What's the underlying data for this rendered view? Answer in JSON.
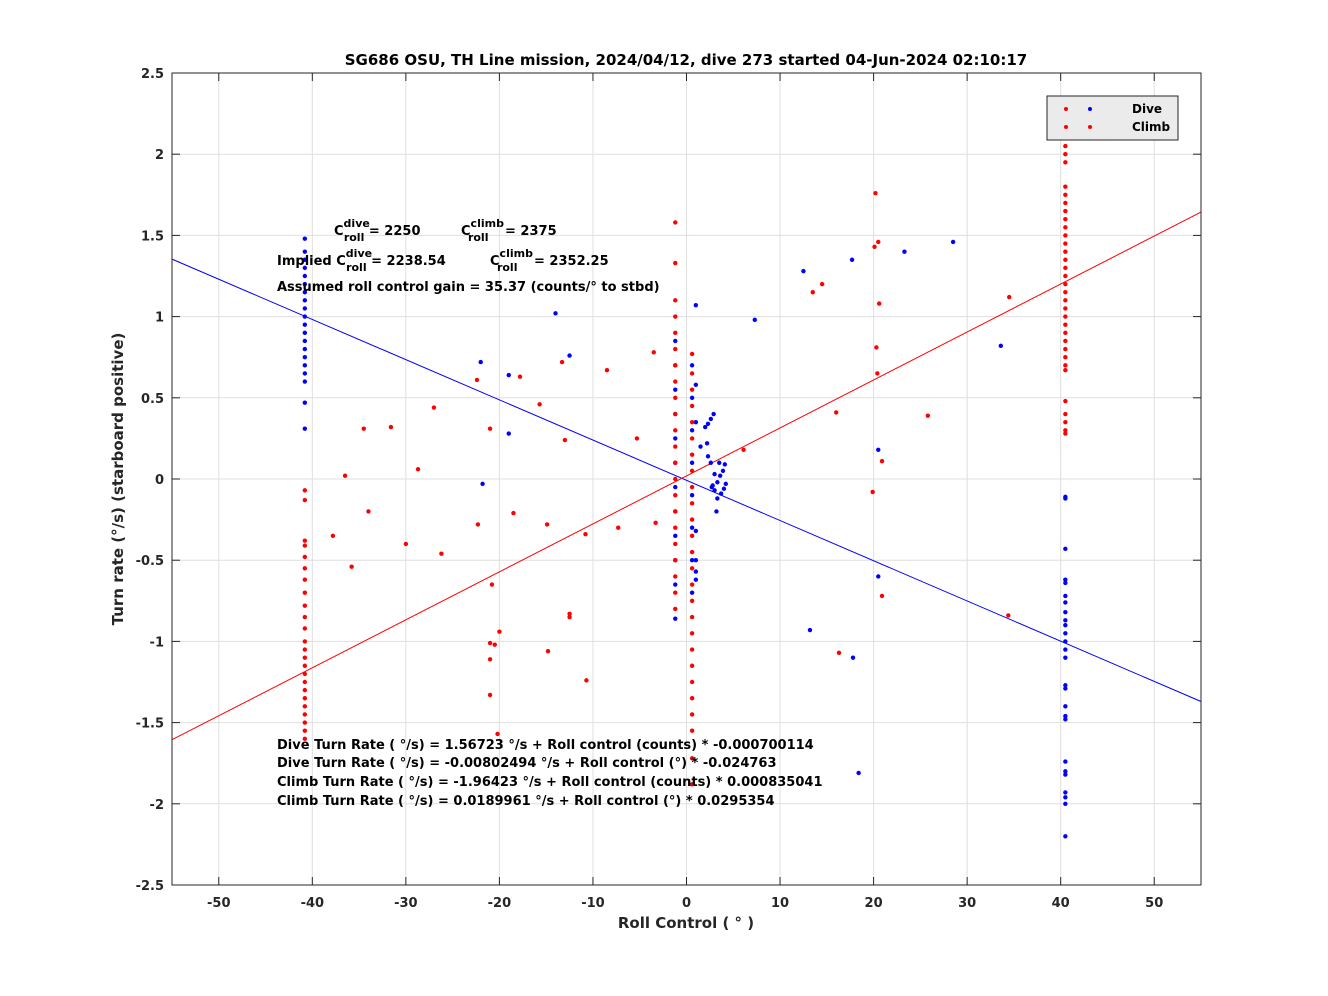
{
  "chart_data": {
    "type": "scatter",
    "title": "SG686 OSU, TH Line mission, 2024/04/12, dive 273 started 04-Jun-2024 02:10:17",
    "xlabel": "Roll Control ( ° )",
    "ylabel": "Turn rate (°/s) (starboard positive)",
    "xlim": [
      -55,
      55
    ],
    "ylim": [
      -2.5,
      2.5
    ],
    "xticks": [
      -50,
      -40,
      -30,
      -20,
      -10,
      0,
      10,
      20,
      30,
      40,
      50
    ],
    "yticks": [
      -2.5,
      -2,
      -1.5,
      -1,
      -0.5,
      0,
      0.5,
      1,
      1.5,
      2,
      2.5
    ],
    "grid": true,
    "legend_position": "top-right",
    "colors": {
      "dive": "#0000ff",
      "climb": "#ff0000"
    },
    "series": [
      {
        "name": "Dive",
        "color": "#0000ff",
        "points": [
          [
            -40.8,
            1.48
          ],
          [
            -40.8,
            1.4
          ],
          [
            -40.8,
            1.35
          ],
          [
            -40.8,
            1.3
          ],
          [
            -40.8,
            1.25
          ],
          [
            -40.8,
            1.2
          ],
          [
            -40.8,
            1.15
          ],
          [
            -40.8,
            1.1
          ],
          [
            -40.8,
            1.05
          ],
          [
            -40.8,
            1.0
          ],
          [
            -40.8,
            0.95
          ],
          [
            -40.8,
            0.9
          ],
          [
            -40.8,
            0.85
          ],
          [
            -40.8,
            0.8
          ],
          [
            -40.8,
            0.75
          ],
          [
            -40.8,
            0.7
          ],
          [
            -40.8,
            0.65
          ],
          [
            -40.8,
            0.6
          ],
          [
            -40.8,
            0.47
          ],
          [
            -40.8,
            0.31
          ],
          [
            -22,
            0.72
          ],
          [
            -19,
            0.64
          ],
          [
            -14,
            1.02
          ],
          [
            -12.5,
            0.76
          ],
          [
            -19,
            0.28
          ],
          [
            -21.8,
            -0.03
          ],
          [
            -1.2,
            0.85
          ],
          [
            -1.2,
            0.7
          ],
          [
            -1.2,
            0.55
          ],
          [
            -1.2,
            0.4
          ],
          [
            -1.2,
            0.25
          ],
          [
            -1.2,
            0.1
          ],
          [
            -1.2,
            -0.05
          ],
          [
            -1.2,
            -0.2
          ],
          [
            -1.2,
            -0.35
          ],
          [
            -1.2,
            -0.5
          ],
          [
            -1.2,
            -0.65
          ],
          [
            -1.2,
            -0.86
          ],
          [
            0.6,
            0.7
          ],
          [
            0.6,
            0.5
          ],
          [
            0.6,
            0.3
          ],
          [
            0.6,
            0.1
          ],
          [
            0.6,
            -0.1
          ],
          [
            0.6,
            -0.3
          ],
          [
            0.6,
            -0.5
          ],
          [
            0.6,
            -0.7
          ],
          [
            1.0,
            1.07
          ],
          [
            1.0,
            0.58
          ],
          [
            1.0,
            0.35
          ],
          [
            1.0,
            -0.32
          ],
          [
            1.0,
            -0.5
          ],
          [
            1.0,
            -0.57
          ],
          [
            1.0,
            -0.62
          ],
          [
            1.5,
            0.2
          ],
          [
            2.0,
            0.32
          ],
          [
            2.3,
            0.34
          ],
          [
            2.6,
            0.37
          ],
          [
            2.9,
            0.4
          ],
          [
            2.2,
            0.22
          ],
          [
            2.6,
            0.1
          ],
          [
            2.3,
            0.14
          ],
          [
            3.0,
            0.03
          ],
          [
            3.3,
            -0.02
          ],
          [
            3.6,
            0.02
          ],
          [
            3.9,
            0.05
          ],
          [
            4.2,
            -0.03
          ],
          [
            4.0,
            -0.06
          ],
          [
            3.7,
            -0.09
          ],
          [
            3.3,
            -0.12
          ],
          [
            3.0,
            -0.07
          ],
          [
            2.7,
            -0.05
          ],
          [
            3.2,
            -0.2
          ],
          [
            3.5,
            0.1
          ],
          [
            4.1,
            0.09
          ],
          [
            2.8,
            -0.04
          ],
          [
            7.3,
            0.98
          ],
          [
            12.5,
            1.28
          ],
          [
            17.7,
            1.35
          ],
          [
            23.3,
            1.4
          ],
          [
            28.5,
            1.46
          ],
          [
            33.6,
            0.82
          ],
          [
            20.5,
            0.18
          ],
          [
            20.5,
            -0.6
          ],
          [
            13.2,
            -0.93
          ],
          [
            17.8,
            -1.1
          ],
          [
            18.4,
            -1.81
          ],
          [
            40.5,
            -0.11
          ],
          [
            40.5,
            -0.12
          ],
          [
            40.5,
            -0.43
          ],
          [
            40.5,
            -0.62
          ],
          [
            40.5,
            -0.64
          ],
          [
            40.5,
            -0.72
          ],
          [
            40.5,
            -0.76
          ],
          [
            40.5,
            -0.82
          ],
          [
            40.5,
            -0.87
          ],
          [
            40.5,
            -0.9
          ],
          [
            40.5,
            -0.95
          ],
          [
            40.5,
            -1.0
          ],
          [
            40.5,
            -1.05
          ],
          [
            40.5,
            -1.1
          ],
          [
            40.5,
            -1.27
          ],
          [
            40.5,
            -1.29
          ],
          [
            40.5,
            -1.4
          ],
          [
            40.5,
            -1.46
          ],
          [
            40.5,
            -1.48
          ],
          [
            40.5,
            -1.74
          ],
          [
            40.5,
            -1.8
          ],
          [
            40.5,
            -1.82
          ],
          [
            40.5,
            -1.93
          ],
          [
            40.5,
            -1.96
          ],
          [
            40.5,
            -2.0
          ],
          [
            40.5,
            -2.2
          ]
        ]
      },
      {
        "name": "Climb",
        "color": "#ff0000",
        "points": [
          [
            -40.8,
            -0.07
          ],
          [
            -40.8,
            -0.13
          ],
          [
            -40.8,
            -0.38
          ],
          [
            -40.8,
            -0.41
          ],
          [
            -40.8,
            -0.48
          ],
          [
            -40.8,
            -0.55
          ],
          [
            -40.8,
            -0.62
          ],
          [
            -40.8,
            -0.7
          ],
          [
            -40.8,
            -0.78
          ],
          [
            -40.8,
            -0.85
          ],
          [
            -40.8,
            -0.92
          ],
          [
            -40.8,
            -1.0
          ],
          [
            -40.8,
            -1.05
          ],
          [
            -40.8,
            -1.1
          ],
          [
            -40.8,
            -1.15
          ],
          [
            -40.8,
            -1.2
          ],
          [
            -40.8,
            -1.25
          ],
          [
            -40.8,
            -1.3
          ],
          [
            -40.8,
            -1.35
          ],
          [
            -40.8,
            -1.4
          ],
          [
            -40.8,
            -1.45
          ],
          [
            -40.8,
            -1.5
          ],
          [
            -40.8,
            -1.55
          ],
          [
            -40.8,
            -1.6
          ],
          [
            -36.5,
            0.02
          ],
          [
            -35.8,
            -0.54
          ],
          [
            -37.8,
            -0.35
          ],
          [
            -34.5,
            0.31
          ],
          [
            -34,
            -0.2
          ],
          [
            -31.6,
            0.32
          ],
          [
            -30,
            -0.4
          ],
          [
            -28.7,
            0.06
          ],
          [
            -27,
            0.44
          ],
          [
            -26.2,
            -0.46
          ],
          [
            -22.4,
            0.61
          ],
          [
            -22.3,
            -0.28
          ],
          [
            -21,
            0.31
          ],
          [
            -20.8,
            -0.65
          ],
          [
            -21,
            -1.01
          ],
          [
            -21,
            -1.11
          ],
          [
            -20.5,
            -1.02
          ],
          [
            -20,
            -0.94
          ],
          [
            -21,
            -1.33
          ],
          [
            -20.2,
            -1.57
          ],
          [
            -18.5,
            -0.21
          ],
          [
            -17.8,
            0.63
          ],
          [
            -15.7,
            0.46
          ],
          [
            -14.9,
            -0.28
          ],
          [
            -14.8,
            -1.06
          ],
          [
            -13.3,
            0.72
          ],
          [
            -13,
            0.24
          ],
          [
            -12.5,
            -0.83
          ],
          [
            -12.5,
            -0.85
          ],
          [
            -10.8,
            -0.34
          ],
          [
            -10.7,
            -1.24
          ],
          [
            -8.5,
            0.67
          ],
          [
            -7.3,
            -0.3
          ],
          [
            -5.3,
            0.25
          ],
          [
            -3.5,
            0.78
          ],
          [
            -3.3,
            -0.27
          ],
          [
            -1.2,
            1.58
          ],
          [
            -1.2,
            1.33
          ],
          [
            -1.2,
            1.1
          ],
          [
            -1.2,
            1.0
          ],
          [
            -1.2,
            0.9
          ],
          [
            -1.2,
            0.8
          ],
          [
            -1.2,
            0.7
          ],
          [
            -1.2,
            0.6
          ],
          [
            -1.2,
            0.5
          ],
          [
            -1.2,
            0.4
          ],
          [
            -1.2,
            0.3
          ],
          [
            -1.2,
            0.2
          ],
          [
            -1.2,
            0.1
          ],
          [
            -1.2,
            0.0
          ],
          [
            -1.2,
            -0.1
          ],
          [
            -1.2,
            -0.2
          ],
          [
            -1.2,
            -0.3
          ],
          [
            -1.2,
            -0.4
          ],
          [
            -1.2,
            -0.5
          ],
          [
            -1.2,
            -0.6
          ],
          [
            -1.2,
            -0.7
          ],
          [
            -1.2,
            -0.8
          ],
          [
            0.6,
            0.77
          ],
          [
            0.6,
            0.65
          ],
          [
            0.6,
            0.55
          ],
          [
            0.6,
            0.45
          ],
          [
            0.6,
            0.35
          ],
          [
            0.6,
            0.25
          ],
          [
            0.6,
            0.15
          ],
          [
            0.6,
            0.05
          ],
          [
            0.6,
            -0.05
          ],
          [
            0.6,
            -0.15
          ],
          [
            0.6,
            -0.25
          ],
          [
            0.6,
            -0.35
          ],
          [
            0.6,
            -0.45
          ],
          [
            0.6,
            -0.55
          ],
          [
            0.6,
            -0.65
          ],
          [
            0.6,
            -0.75
          ],
          [
            0.6,
            -0.85
          ],
          [
            0.6,
            -0.95
          ],
          [
            0.6,
            -1.05
          ],
          [
            0.6,
            -1.15
          ],
          [
            0.6,
            -1.25
          ],
          [
            0.6,
            -1.35
          ],
          [
            0.6,
            -1.45
          ],
          [
            0.6,
            -1.55
          ],
          [
            0.6,
            -1.72
          ],
          [
            0.6,
            -1.88
          ],
          [
            6.1,
            0.18
          ],
          [
            13.5,
            1.15
          ],
          [
            14.5,
            1.2
          ],
          [
            16,
            0.41
          ],
          [
            16.3,
            -1.07
          ],
          [
            19.9,
            -0.08
          ],
          [
            20.1,
            1.43
          ],
          [
            20.2,
            1.76
          ],
          [
            20.5,
            1.46
          ],
          [
            20.6,
            1.08
          ],
          [
            20.3,
            0.81
          ],
          [
            20.4,
            0.65
          ],
          [
            20.9,
            0.11
          ],
          [
            20.9,
            -0.72
          ],
          [
            25.8,
            0.39
          ],
          [
            34.5,
            1.12
          ],
          [
            34.4,
            -0.84
          ],
          [
            40.5,
            2.1
          ],
          [
            40.5,
            2.05
          ],
          [
            40.5,
            2.0
          ],
          [
            40.5,
            1.95
          ],
          [
            40.5,
            1.8
          ],
          [
            40.5,
            1.75
          ],
          [
            40.5,
            1.7
          ],
          [
            40.5,
            1.65
          ],
          [
            40.5,
            1.6
          ],
          [
            40.5,
            1.55
          ],
          [
            40.5,
            1.5
          ],
          [
            40.5,
            1.45
          ],
          [
            40.5,
            1.4
          ],
          [
            40.5,
            1.35
          ],
          [
            40.5,
            1.3
          ],
          [
            40.5,
            1.25
          ],
          [
            40.5,
            1.2
          ],
          [
            40.5,
            1.15
          ],
          [
            40.5,
            1.1
          ],
          [
            40.5,
            1.05
          ],
          [
            40.5,
            1.0
          ],
          [
            40.5,
            0.95
          ],
          [
            40.5,
            0.9
          ],
          [
            40.5,
            0.85
          ],
          [
            40.5,
            0.8
          ],
          [
            40.5,
            0.75
          ],
          [
            40.5,
            0.7
          ],
          [
            40.5,
            0.67
          ],
          [
            40.5,
            0.48
          ],
          [
            40.5,
            0.4
          ],
          [
            40.5,
            0.35
          ],
          [
            40.5,
            0.3
          ],
          [
            40.5,
            0.28
          ]
        ]
      }
    ],
    "fit_lines": [
      {
        "color": "#0000ff",
        "intercept": -0.00802494,
        "slope": -0.024763
      },
      {
        "color": "#ff0000",
        "intercept": 0.0189961,
        "slope": 0.0295354
      }
    ],
    "annotations": {
      "c_dive_label": "C",
      "c_dive_sup": "dive",
      "c_dive_sub": "roll",
      "c_dive_value": " = 2250",
      "c_climb_label": "C",
      "c_climb_sup": "climb",
      "c_climb_sub": "roll",
      "c_climb_value": " = 2375",
      "implied_prefix": "Implied C",
      "implied_dive_sup": "dive",
      "implied_dive_sub": "roll",
      "implied_dive_value": " = 2238.54",
      "implied_climb_label": "C",
      "implied_climb_sup": "climb",
      "implied_climb_sub": "roll",
      "implied_climb_value": " = 2352.25",
      "gain": "Assumed roll control gain = 35.37 (counts/° to stbd)",
      "eq1": "Dive Turn Rate ( °/s) = 1.56723 °/s + Roll control (counts) * -0.000700114",
      "eq2": "Dive Turn Rate ( °/s) = -0.00802494  °/s + Roll control (°) * -0.024763",
      "eq3": "Climb Turn Rate ( °/s) = -1.96423 °/s + Roll control (counts) * 0.000835041",
      "eq4": "Climb Turn Rate ( °/s) = 0.0189961 °/s + Roll control (°) * 0.0295354"
    }
  }
}
